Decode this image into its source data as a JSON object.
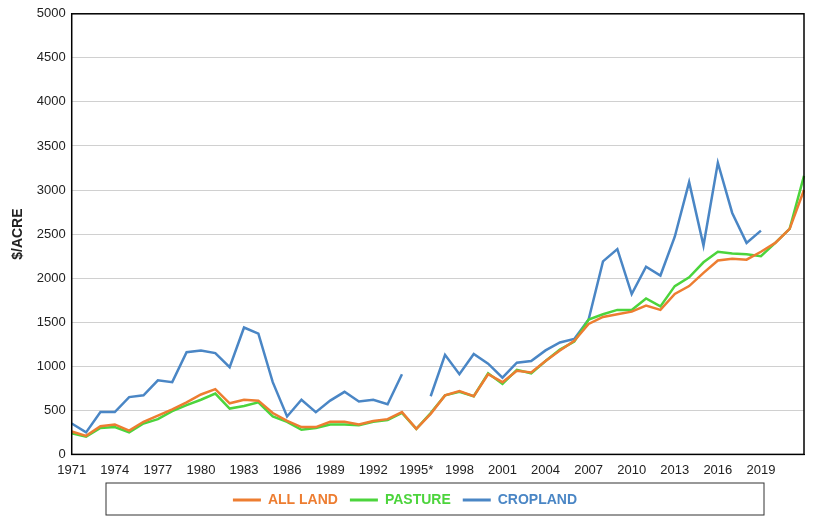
{
  "chart_data": {
    "type": "line",
    "y_label": "$/ACRE",
    "categories": [
      "1971",
      null,
      null,
      "1974",
      null,
      null,
      "1977",
      null,
      null,
      "1980",
      null,
      null,
      "1983",
      null,
      null,
      "1986",
      null,
      null,
      "1989",
      null,
      null,
      "1992",
      null,
      null,
      "1995*",
      null,
      null,
      "1998",
      null,
      null,
      "2001",
      null,
      null,
      "2004",
      null,
      null,
      "2007",
      null,
      null,
      "2010",
      null,
      null,
      "2013",
      null,
      null,
      "2016",
      null,
      null,
      "2019",
      null,
      null,
      null
    ],
    "series": [
      {
        "name": "ALL LAND",
        "color": "#ed7d31",
        "values": [
          260,
          210,
          320,
          340,
          270,
          370,
          440,
          510,
          590,
          680,
          740,
          580,
          620,
          610,
          470,
          380,
          310,
          310,
          370,
          370,
          340,
          380,
          400,
          480,
          290,
          460,
          670,
          720,
          660,
          910,
          820,
          950,
          930,
          1060,
          1180,
          1290,
          1480,
          1560,
          1590,
          1620,
          1690,
          1640,
          1820,
          1910,
          2060,
          2200,
          2220,
          2210,
          2300,
          2400,
          2560,
          3000
        ]
      },
      {
        "name": "PASTURE",
        "color": "#4cd43c",
        "values": [
          240,
          200,
          300,
          310,
          250,
          350,
          400,
          490,
          560,
          620,
          690,
          520,
          550,
          590,
          430,
          370,
          280,
          300,
          340,
          340,
          330,
          370,
          390,
          470,
          290,
          470,
          670,
          710,
          660,
          920,
          800,
          960,
          920,
          1060,
          1190,
          1280,
          1530,
          1590,
          1640,
          1640,
          1770,
          1680,
          1910,
          2010,
          2180,
          2300,
          2280,
          2270,
          2250,
          2400,
          2560,
          3160
        ]
      },
      {
        "name": "CROPLAND",
        "color": "#4a86c5",
        "values": [
          350,
          250,
          480,
          480,
          650,
          670,
          840,
          820,
          1160,
          1180,
          1150,
          990,
          1440,
          1370,
          820,
          430,
          620,
          480,
          610,
          710,
          600,
          620,
          570,
          910,
          null,
          660,
          1130,
          910,
          1140,
          1030,
          870,
          1040,
          1060,
          1180,
          1270,
          1310,
          1530,
          2190,
          2330,
          1820,
          2130,
          2030,
          2470,
          3090,
          2370,
          3310,
          2740,
          2400,
          2540,
          null,
          null,
          null
        ]
      }
    ],
    "ylim": [
      0,
      5000
    ],
    "yticks": [
      0,
      500,
      1000,
      1500,
      2000,
      2500,
      3000,
      3500,
      4000,
      4500,
      5000
    ],
    "grid": true,
    "legend": "bottom"
  }
}
